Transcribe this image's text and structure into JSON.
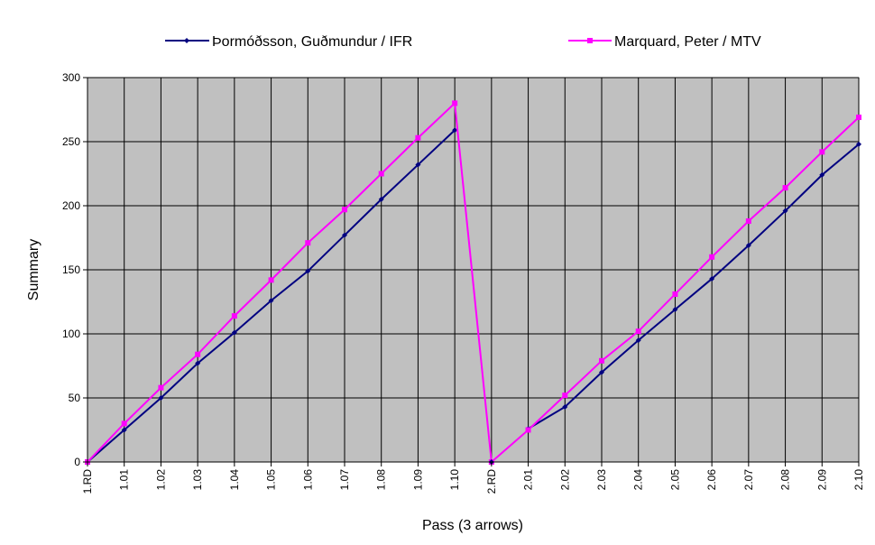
{
  "chart_data": {
    "type": "line",
    "title": "",
    "xlabel": "Pass (3 arrows)",
    "ylabel": "Summary",
    "ylim": [
      0,
      300
    ],
    "yticks": [
      0,
      50,
      100,
      150,
      200,
      250,
      300
    ],
    "grid": true,
    "legend_position": "top",
    "plot_background": "#c0c0c0",
    "categories": [
      "1.RD",
      "1.01",
      "1.02",
      "1.03",
      "1.04",
      "1.05",
      "1.06",
      "1.07",
      "1.08",
      "1.09",
      "1.10",
      "2.RD",
      "2.01",
      "2.02",
      "2.03",
      "2.04",
      "2.05",
      "2.06",
      "2.07",
      "2.08",
      "2.09",
      "2.10"
    ],
    "series": [
      {
        "name": "Þormóðsson, Guðmundur / IFR",
        "color": "#000080",
        "marker": "diamond",
        "values": [
          0,
          25,
          50,
          77,
          101,
          126,
          149,
          177,
          205,
          232,
          259,
          null,
          26,
          43,
          70,
          95,
          119,
          143,
          169,
          196,
          224,
          248
        ]
      },
      {
        "name": "Marquard, Peter / MTV",
        "color": "#ff00ff",
        "marker": "square",
        "values": [
          0,
          30,
          58,
          84,
          114,
          142,
          171,
          197,
          225,
          253,
          280,
          0,
          25,
          52,
          79,
          102,
          131,
          160,
          188,
          214,
          242,
          269
        ]
      }
    ],
    "extra_points": [
      {
        "series": 0,
        "category": "2.RD",
        "value": 0
      }
    ]
  }
}
